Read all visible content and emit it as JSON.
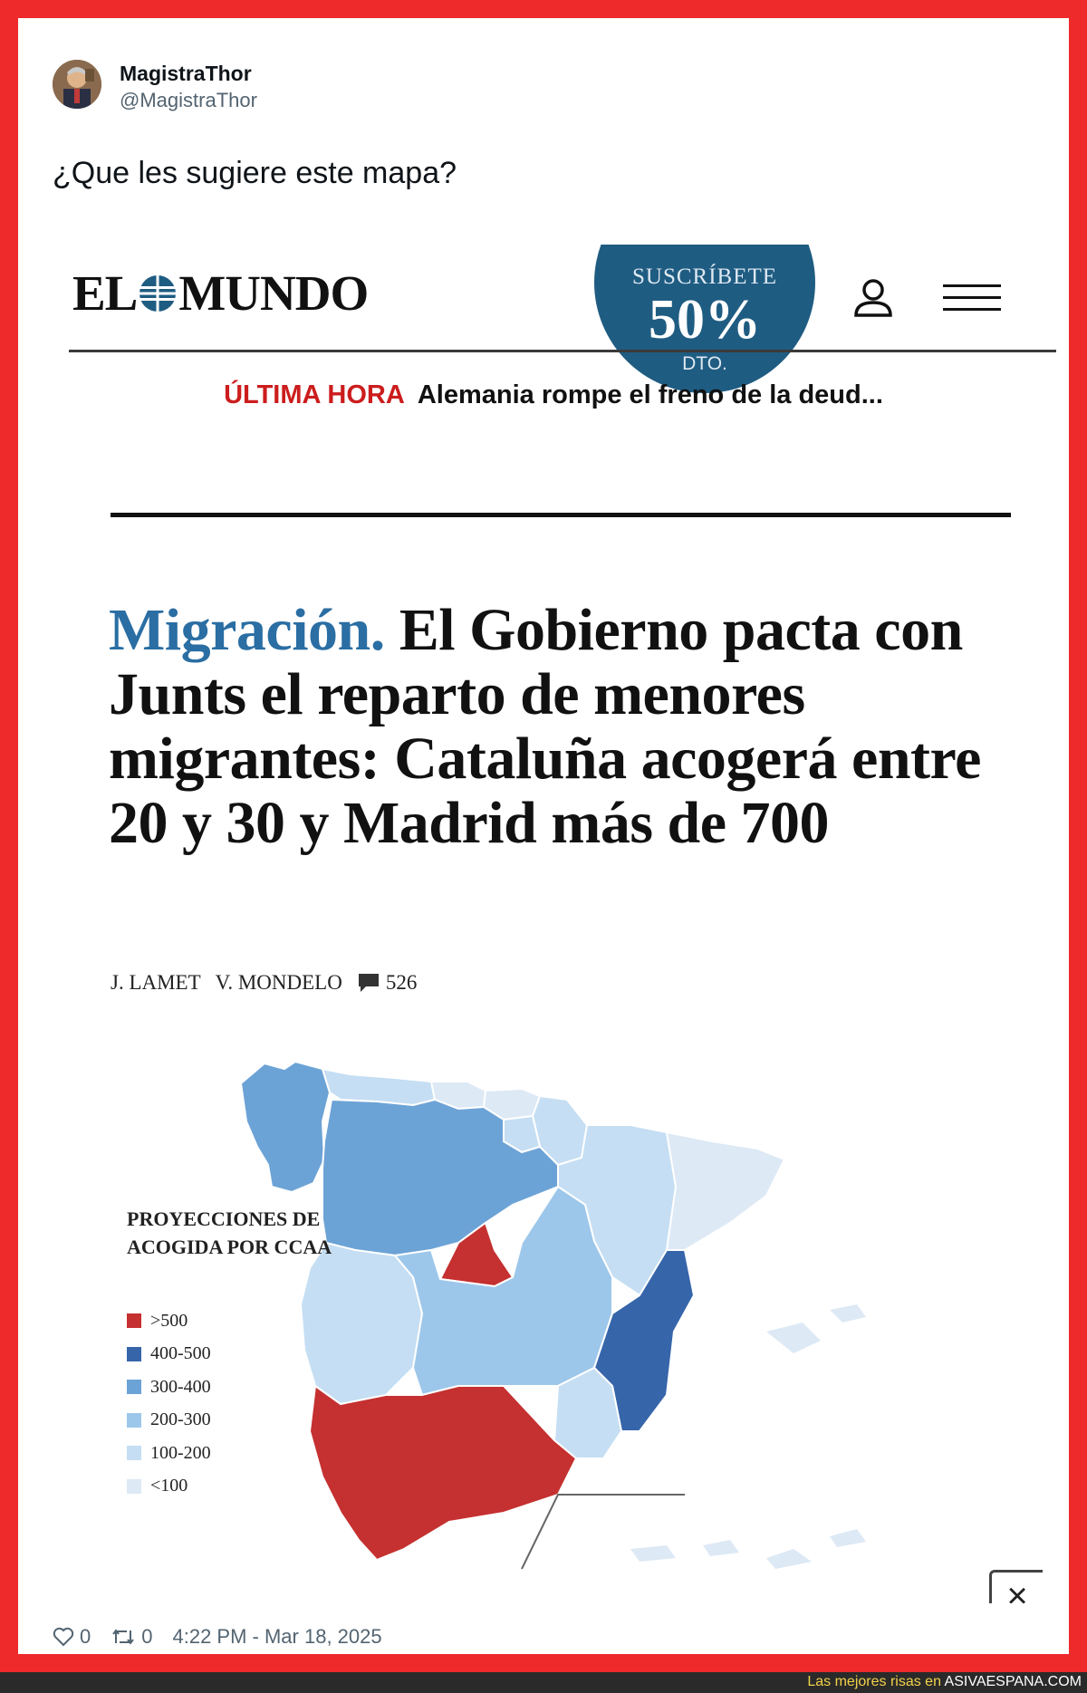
{
  "tweet": {
    "author_name": "MagistraThor",
    "author_handle": "@MagistraThor",
    "text": "¿Que les sugiere este mapa?",
    "likes": "0",
    "retweets": "0",
    "timestamp": "4:22 PM - Mar 18, 2025"
  },
  "article": {
    "logo_left": "EL",
    "logo_right": "MUNDO",
    "subscribe": {
      "label": "SUSCRÍBETE",
      "percent": "50%",
      "suffix": "DTO."
    },
    "breaking_tag": "ÚLTIMA HORA",
    "breaking_text": "Alemania rompe el freno de la deud...",
    "headline_kicker": "Migración.",
    "headline": "El Gobierno pacta con Junts el reparto de menores migrantes: Cataluña acogerá entre 20 y 30 y Madrid más de 700",
    "author_1": "J. LAMET",
    "author_2": "V. MONDELO",
    "comments": "526",
    "close_label": "×"
  },
  "map": {
    "legend_title": "PROYECCIONES DE ACOGIDA POR CCAA",
    "legend": [
      {
        "label": ">500",
        "color": "#c53030"
      },
      {
        "label": "400-500",
        "color": "#3665aa"
      },
      {
        "label": "300-400",
        "color": "#6ca3d6"
      },
      {
        "label": "200-300",
        "color": "#9dc7ea"
      },
      {
        "label": "100-200",
        "color": "#c5def3"
      },
      {
        "label": "<100",
        "color": "#dde9f5"
      }
    ]
  },
  "footer": {
    "prefix": "Las mejores risas en",
    "site": "ASIVAESPANA.COM"
  },
  "colors": {
    "frame": "#ee2a2a",
    "brand_blue": "#1f5c82",
    "kicker_blue": "#2a6ea3",
    "breaking_red": "#cc1d1d"
  }
}
